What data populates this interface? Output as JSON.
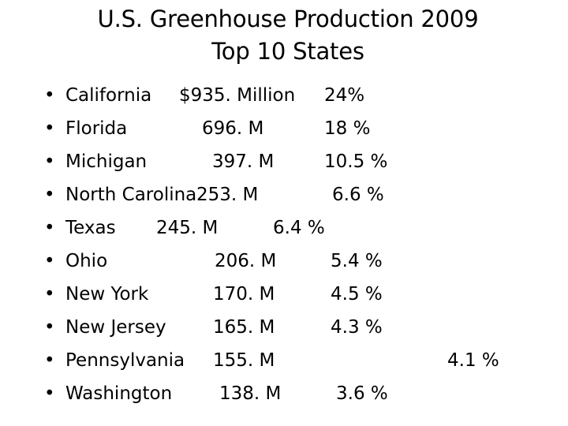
{
  "title": {
    "line1": "U.S. Greenhouse Production 2009",
    "line2": "Top 10 States"
  },
  "bullet_glyph": "•",
  "items": [
    {
      "state": "California",
      "value": "$935. Million",
      "share": "24%"
    },
    {
      "state": "Florida",
      "value": "696. M",
      "share": "18 %"
    },
    {
      "state": "Michigan",
      "value": "397. M",
      "share": "10.5 %"
    },
    {
      "state": "North Carolina",
      "value": "253. M",
      "share": "6.6 %"
    },
    {
      "state": "Texas",
      "value": "245. M",
      "share": "6.4 %"
    },
    {
      "state": "Ohio",
      "value": "206. M",
      "share": "5.4 %"
    },
    {
      "state": "New York",
      "value": "170. M",
      "share": "4.5 %"
    },
    {
      "state": "New Jersey",
      "value": "165. M",
      "share": "4.3 %"
    },
    {
      "state": "Pennsylvania",
      "value": "155. M",
      "share": "4.1 %"
    },
    {
      "state": "Washington",
      "value": "138. M",
      "share": "3.6 %"
    }
  ]
}
